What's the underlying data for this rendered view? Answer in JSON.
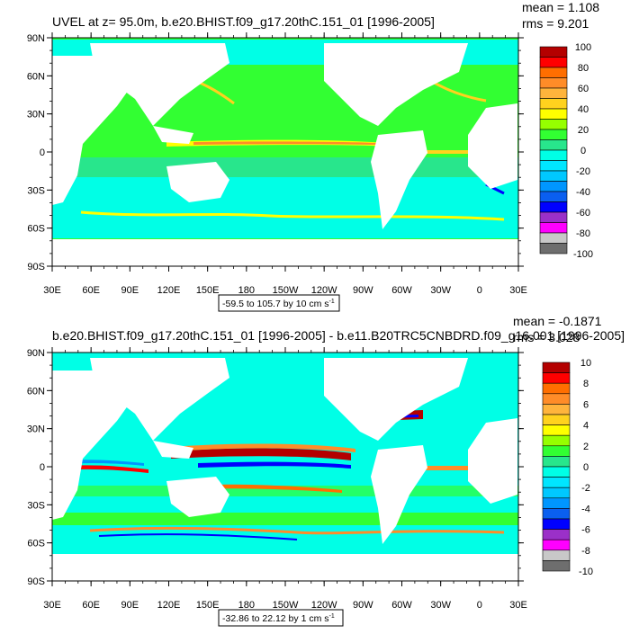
{
  "page": {
    "background": "#ffffff"
  },
  "colors": {
    "land": "#ffffff",
    "top_palette": [
      "#6e6e6e",
      "#c8c8c8",
      "#ff00ff",
      "#9b30c8",
      "#0000ff",
      "#0a5ff0",
      "#0096ff",
      "#00c8ff",
      "#00e6ff",
      "#00ffe6",
      "#28e68c",
      "#32ff32",
      "#96ff00",
      "#ffff00",
      "#ffd21e",
      "#ffb43c",
      "#ff8c28",
      "#ff6e00",
      "#ff0000",
      "#b40000"
    ],
    "bottom_palette": [
      "#6e6e6e",
      "#c8c8c8",
      "#ff00ff",
      "#9b30c8",
      "#0000ff",
      "#0a5ff0",
      "#0096ff",
      "#00c8ff",
      "#00e6ff",
      "#00ffe6",
      "#28e68c",
      "#32ff32",
      "#96ff00",
      "#ffff00",
      "#ffd21e",
      "#ffb43c",
      "#ff8c28",
      "#ff6e00",
      "#ff0000",
      "#b40000"
    ]
  },
  "chart_data": [
    {
      "type": "heatmap",
      "title": "UVEL at z=  95.0m, b.e20.BHIST.f09_g17.20thC.151_01 [1996-2005]",
      "stats": {
        "mean": "mean = 1.108",
        "rms": "rms = 9.201"
      },
      "y_ticks": [
        "90N",
        "60N",
        "30N",
        "0",
        "30S",
        "60S",
        "90S"
      ],
      "x_ticks": [
        "30E",
        "60E",
        "90E",
        "120E",
        "150E",
        "180",
        "150W",
        "120W",
        "90W",
        "60W",
        "30W",
        "0",
        "30E"
      ],
      "contour_info": "-59.5 to 105.7 by 10 cm s",
      "contour_info_sup": "-1",
      "colorbar_labels": [
        "100",
        "80",
        "60",
        "40",
        "20",
        "0",
        "-20",
        "-40",
        "-60",
        "-80",
        "-100"
      ],
      "colorbar_levels": [
        -100,
        -90,
        -80,
        -70,
        -60,
        -50,
        -40,
        -30,
        -20,
        -10,
        0,
        10,
        20,
        30,
        40,
        50,
        60,
        70,
        80,
        90,
        100
      ],
      "xlim_deg_east": [
        30,
        390
      ],
      "ylim_deg": [
        -90,
        90
      ]
    },
    {
      "type": "heatmap",
      "title": "b.e20.BHIST.f09_g17.20thC.151_01 [1996-2005] - b.e11.B20TRC5CNBDRD.f09_g16.001 [1996-2005]",
      "stats": {
        "mean": "mean = -0.1871",
        "rms": "rms = 3.028"
      },
      "y_ticks": [
        "90N",
        "60N",
        "30N",
        "0",
        "30S",
        "60S",
        "90S"
      ],
      "x_ticks": [
        "30E",
        "60E",
        "90E",
        "120E",
        "150E",
        "180",
        "150W",
        "120W",
        "90W",
        "60W",
        "30W",
        "0",
        "30E"
      ],
      "contour_info": "-32.86 to 22.12 by 1 cm s",
      "contour_info_sup": "-1",
      "colorbar_labels": [
        "10",
        "8",
        "6",
        "4",
        "2",
        "0",
        "-2",
        "-4",
        "-6",
        "-8",
        "-10"
      ],
      "colorbar_levels": [
        -10,
        -9,
        -8,
        -7,
        -6,
        -5,
        -4,
        -3,
        -2,
        -1,
        0,
        1,
        2,
        3,
        4,
        5,
        6,
        7,
        8,
        9,
        10
      ],
      "xlim_deg_east": [
        30,
        390
      ],
      "ylim_deg": [
        -90,
        90
      ]
    }
  ]
}
